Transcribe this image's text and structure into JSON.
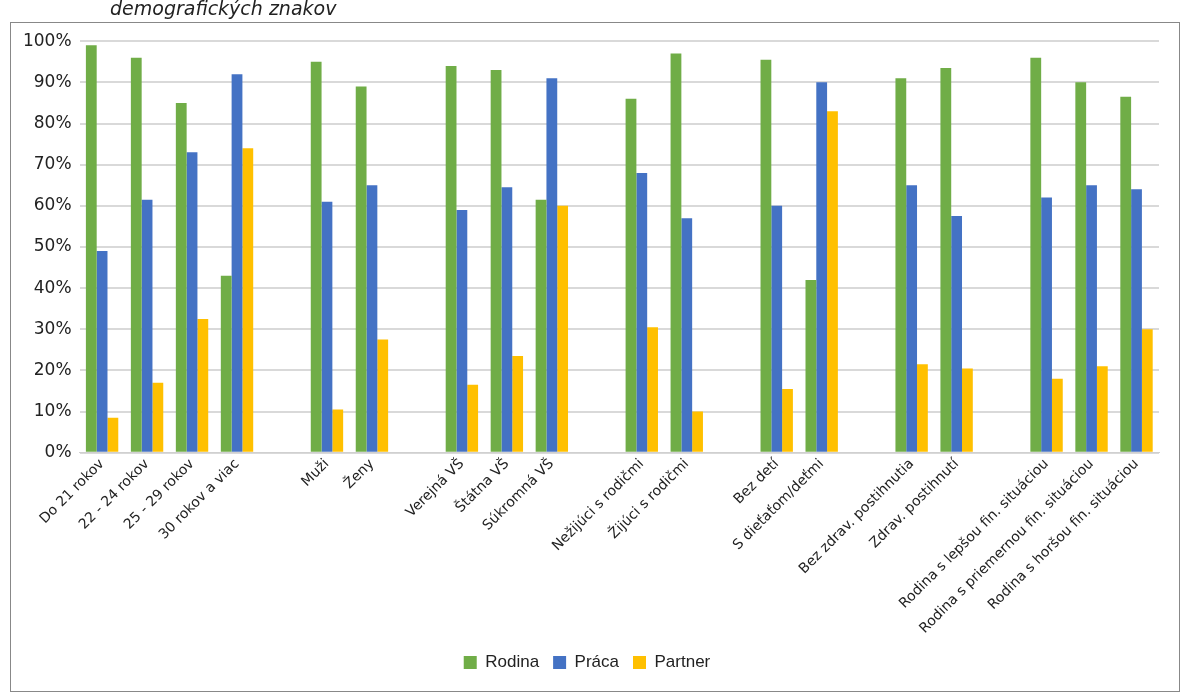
{
  "chart_data": {
    "type": "bar",
    "title": "demografických znakov",
    "categories": [
      "Do 21 rokov",
      "22 - 24 rokov",
      "25 - 29 rokov",
      "30 rokov a viac",
      null,
      "Muži",
      "Ženy",
      null,
      "Verejná VŠ",
      "Štátna VŠ",
      "Súkromná VŠ",
      null,
      "Nežijúci s rodičmi",
      "Žijúci s rodičmi",
      null,
      "Bez detí",
      "S dieťaťom/deťmi",
      null,
      "Bez zdrav. postihnutia",
      "Zdrav. postihnutí",
      null,
      "Rodina s lepšou fin. situáciou",
      "Rodina s priemernou fin. situáciou",
      "Rodina s horšou fin. situáciou"
    ],
    "series": [
      {
        "name": "Rodina",
        "color": "#70ad47",
        "values": [
          99,
          96,
          85,
          43,
          null,
          95,
          89,
          null,
          94,
          93,
          61.5,
          null,
          86,
          97,
          null,
          95.5,
          42,
          null,
          91,
          93.5,
          null,
          96,
          90,
          86.5
        ]
      },
      {
        "name": "Práca",
        "color": "#4472c4",
        "values": [
          49,
          61.5,
          73,
          92,
          null,
          61,
          65,
          null,
          59,
          64.5,
          91,
          null,
          68,
          57,
          null,
          60,
          90,
          null,
          65,
          57.5,
          null,
          62,
          65,
          64
        ]
      },
      {
        "name": "Partner",
        "color": "#ffc000",
        "values": [
          8.5,
          17,
          32.5,
          74,
          null,
          10.5,
          27.5,
          null,
          16.5,
          23.5,
          60,
          null,
          30.5,
          10,
          null,
          15.5,
          83,
          null,
          21.5,
          20.5,
          null,
          18,
          21,
          30
        ]
      }
    ],
    "ylim": [
      0,
      100
    ],
    "yticks": [
      {
        "value": 0,
        "label": "0%"
      },
      {
        "value": 10,
        "label": "10%"
      },
      {
        "value": 20,
        "label": "20%"
      },
      {
        "value": 30,
        "label": "30%"
      },
      {
        "value": 40,
        "label": "40%"
      },
      {
        "value": 50,
        "label": "50%"
      },
      {
        "value": 60,
        "label": "60%"
      },
      {
        "value": 70,
        "label": "70%"
      },
      {
        "value": 80,
        "label": "80%"
      },
      {
        "value": 90,
        "label": "90%"
      },
      {
        "value": 100,
        "label": "100%"
      }
    ],
    "grid": "y",
    "legend": "bottom"
  }
}
